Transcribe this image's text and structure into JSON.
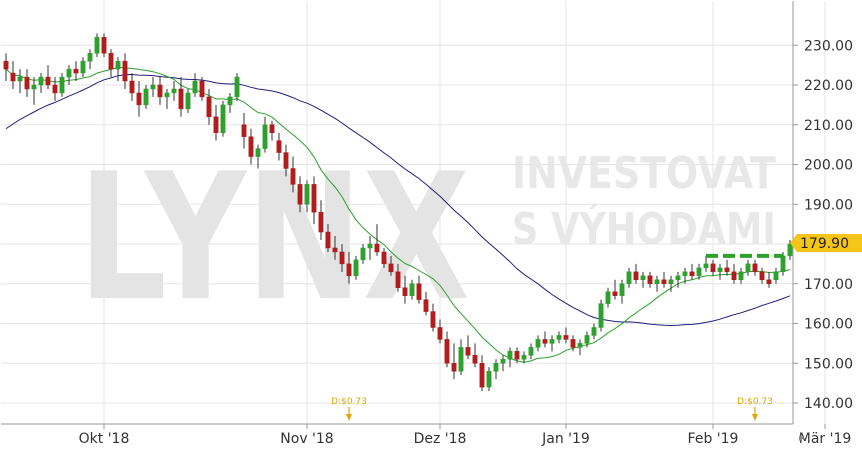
{
  "chart_data": {
    "type": "candlestick",
    "ylim": [
      135,
      236
    ],
    "yticks": [
      140,
      150,
      160,
      170,
      180,
      190,
      200,
      210,
      220,
      230
    ],
    "ytick_labels": [
      "140.00",
      "150.00",
      "160.00",
      "170.00",
      "180.00",
      "190.00",
      "200.00",
      "210.00",
      "220.00",
      "230.00"
    ],
    "xtick_labels": [
      "Okt '18",
      "Nov '18",
      "Dez '18",
      "Jan '19",
      "Feb '19",
      "Mär '19"
    ],
    "last_price_label": "179.90",
    "watermark": {
      "logo": "LYNX",
      "line1": "INVESTOVAT",
      "line2": "S VÝHODAMI"
    },
    "dividends": [
      {
        "label": "D:$0.73",
        "near": "Nov '18"
      },
      {
        "label": "D:$0.73",
        "near": "Feb '19"
      }
    ],
    "resistance_level": 177,
    "colors": {
      "up": "#2ea02e",
      "down": "#b11c1c",
      "sma_short": "#2ca02c",
      "sma_long": "#1f1f7a",
      "resistance": "#2ea02e",
      "dividend": "#e0a800",
      "last_price": "#f5c518"
    },
    "candles": [
      [
        226,
        228,
        221,
        224
      ],
      [
        223,
        226,
        219,
        221
      ],
      [
        221,
        224,
        218,
        222
      ],
      [
        222,
        224,
        217,
        219
      ],
      [
        219,
        222,
        215,
        220
      ],
      [
        220,
        223,
        218,
        222
      ],
      [
        222,
        225,
        219,
        220
      ],
      [
        220,
        222,
        216,
        218
      ],
      [
        218,
        223,
        217,
        222
      ],
      [
        222,
        225,
        220,
        224
      ],
      [
        224,
        226,
        221,
        223
      ],
      [
        223,
        227,
        222,
        226
      ],
      [
        226,
        229,
        224,
        228
      ],
      [
        228,
        233,
        227,
        232
      ],
      [
        232,
        233,
        227,
        228
      ],
      [
        228,
        229,
        222,
        224
      ],
      [
        224,
        227,
        221,
        226
      ],
      [
        226,
        228,
        219,
        221
      ],
      [
        221,
        223,
        216,
        218
      ],
      [
        218,
        221,
        212,
        215
      ],
      [
        215,
        220,
        214,
        219
      ],
      [
        219,
        222,
        217,
        220
      ],
      [
        220,
        222,
        215,
        217
      ],
      [
        217,
        219,
        214,
        218
      ],
      [
        218,
        221,
        216,
        219
      ],
      [
        219,
        222,
        212,
        214
      ],
      [
        214,
        219,
        213,
        218
      ],
      [
        218,
        223,
        217,
        221
      ],
      [
        221,
        222,
        216,
        217
      ],
      [
        217,
        219,
        210,
        212
      ],
      [
        212,
        215,
        206,
        208
      ],
      [
        208,
        216,
        207,
        215
      ],
      [
        215,
        218,
        213,
        217
      ],
      [
        217,
        223,
        216,
        222
      ],
      [
        210,
        213,
        204,
        207
      ],
      [
        207,
        209,
        200,
        202
      ],
      [
        202,
        205,
        199,
        204
      ],
      [
        204,
        212,
        203,
        210
      ],
      [
        210,
        211,
        206,
        208
      ],
      [
        206,
        208,
        201,
        203
      ],
      [
        203,
        205,
        197,
        199
      ],
      [
        199,
        202,
        193,
        195
      ],
      [
        195,
        197,
        188,
        190
      ],
      [
        190,
        196,
        188,
        195
      ],
      [
        195,
        197,
        185,
        188
      ],
      [
        188,
        191,
        181,
        183
      ],
      [
        183,
        185,
        178,
        179
      ],
      [
        179,
        182,
        176,
        178
      ],
      [
        178,
        180,
        173,
        175
      ],
      [
        175,
        178,
        170,
        172
      ],
      [
        172,
        177,
        171,
        176
      ],
      [
        176,
        180,
        175,
        179
      ],
      [
        179,
        182,
        176,
        180
      ],
      [
        180,
        185,
        177,
        178
      ],
      [
        178,
        179,
        174,
        175
      ],
      [
        175,
        177,
        172,
        173
      ],
      [
        173,
        175,
        168,
        169
      ],
      [
        169,
        172,
        165,
        167
      ],
      [
        167,
        171,
        166,
        170
      ],
      [
        170,
        172,
        165,
        166
      ],
      [
        166,
        168,
        162,
        163
      ],
      [
        163,
        165,
        158,
        159
      ],
      [
        159,
        161,
        155,
        156
      ],
      [
        156,
        158,
        149,
        150
      ],
      [
        150,
        155,
        146,
        148
      ],
      [
        148,
        156,
        147,
        154
      ],
      [
        154,
        157,
        151,
        152
      ],
      [
        152,
        155,
        149,
        150
      ],
      [
        150,
        152,
        143,
        144
      ],
      [
        144,
        149,
        143,
        148
      ],
      [
        148,
        151,
        146,
        150
      ],
      [
        150,
        152,
        148,
        151
      ],
      [
        151,
        154,
        149,
        153
      ],
      [
        153,
        154,
        150,
        151
      ],
      [
        151,
        153,
        150,
        152
      ],
      [
        152,
        155,
        151,
        154
      ],
      [
        154,
        157,
        153,
        156
      ],
      [
        156,
        158,
        154,
        155
      ],
      [
        155,
        157,
        153,
        156
      ],
      [
        156,
        158,
        155,
        157
      ],
      [
        157,
        159,
        155,
        156
      ],
      [
        156,
        157,
        153,
        154
      ],
      [
        154,
        156,
        152,
        155
      ],
      [
        155,
        158,
        154,
        157
      ],
      [
        157,
        160,
        156,
        159
      ],
      [
        159,
        166,
        158,
        165
      ],
      [
        165,
        169,
        164,
        168
      ],
      [
        168,
        171,
        166,
        167
      ],
      [
        167,
        171,
        165,
        170
      ],
      [
        170,
        174,
        169,
        173
      ],
      [
        173,
        175,
        170,
        171
      ],
      [
        171,
        173,
        169,
        172
      ],
      [
        172,
        173,
        169,
        170
      ],
      [
        170,
        172,
        168,
        171
      ],
      [
        171,
        173,
        169,
        170
      ],
      [
        170,
        172,
        168,
        171
      ],
      [
        171,
        173,
        169,
        172
      ],
      [
        172,
        174,
        170,
        173
      ],
      [
        173,
        175,
        171,
        172
      ],
      [
        172,
        175,
        171,
        174
      ],
      [
        174,
        177,
        173,
        175
      ],
      [
        175,
        176,
        172,
        173
      ],
      [
        173,
        175,
        171,
        174
      ],
      [
        174,
        176,
        172,
        173
      ],
      [
        173,
        175,
        170,
        171
      ],
      [
        171,
        174,
        170,
        173
      ],
      [
        173,
        176,
        172,
        175
      ],
      [
        175,
        176,
        172,
        173
      ],
      [
        173,
        174,
        170,
        171
      ],
      [
        171,
        173,
        169,
        170
      ],
      [
        171,
        174,
        170,
        173
      ],
      [
        173,
        178,
        172,
        177
      ],
      [
        177,
        181,
        176,
        180
      ]
    ]
  }
}
